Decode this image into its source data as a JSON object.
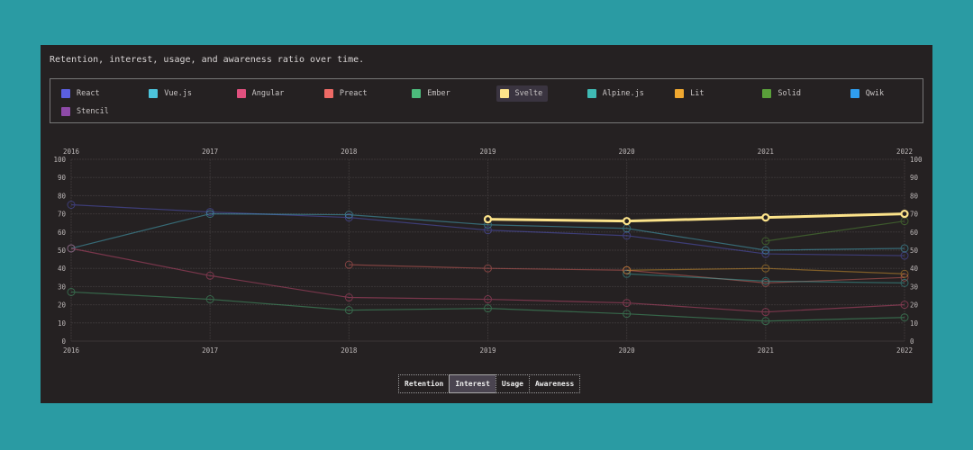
{
  "chart_data": {
    "type": "line",
    "title": "Retention, interest, usage, and awareness ratio over time.",
    "x": [
      2016,
      2017,
      2018,
      2019,
      2020,
      2021,
      2022
    ],
    "ylim": [
      0,
      100
    ],
    "yticks": [
      0,
      10,
      20,
      30,
      40,
      50,
      60,
      70,
      80,
      90,
      100
    ],
    "grid": true,
    "legend_placement": "top",
    "highlighted": "Svelte",
    "series": [
      {
        "name": "React",
        "color": "#5b5fe0",
        "values": [
          75,
          71,
          68,
          61,
          58,
          48,
          47
        ]
      },
      {
        "name": "Vue.js",
        "color": "#4cc4dc",
        "values": [
          51,
          70,
          69.5,
          64,
          62,
          50,
          51
        ]
      },
      {
        "name": "Angular",
        "color": "#e0507e",
        "values": [
          51,
          36,
          24,
          23,
          21,
          16,
          20
        ]
      },
      {
        "name": "Preact",
        "color": "#ee6a66",
        "values": [
          null,
          null,
          42,
          40,
          39,
          32,
          35
        ]
      },
      {
        "name": "Ember",
        "color": "#4cbc7c",
        "values": [
          27,
          23,
          17,
          18,
          15,
          11,
          13
        ]
      },
      {
        "name": "Svelte",
        "color": "#fce38a",
        "values": [
          null,
          null,
          null,
          67,
          66,
          68,
          70
        ]
      },
      {
        "name": "Alpine.js",
        "color": "#3fbab4",
        "values": [
          null,
          null,
          null,
          null,
          37,
          33,
          32
        ]
      },
      {
        "name": "Lit",
        "color": "#f0a830",
        "values": [
          null,
          null,
          null,
          null,
          39,
          40,
          37
        ]
      },
      {
        "name": "Solid",
        "color": "#5aa03a",
        "values": [
          null,
          null,
          null,
          null,
          null,
          55,
          66
        ]
      },
      {
        "name": "Qwik",
        "color": "#2f9ef0",
        "values": [
          null,
          null,
          null,
          null,
          null,
          null,
          null
        ]
      },
      {
        "name": "Stencil",
        "color": "#8e4aa8",
        "values": [
          null,
          null,
          null,
          null,
          null,
          null,
          null
        ]
      }
    ]
  },
  "tabs": [
    {
      "label": "Retention",
      "active": false
    },
    {
      "label": "Interest",
      "active": true
    },
    {
      "label": "Usage",
      "active": false
    },
    {
      "label": "Awareness",
      "active": false
    }
  ]
}
